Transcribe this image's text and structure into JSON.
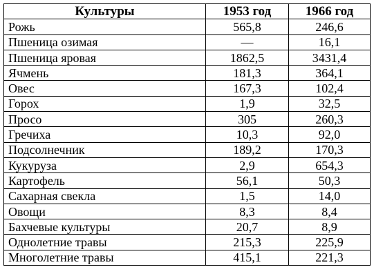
{
  "table": {
    "headers": {
      "crop": "Культуры",
      "y1953": "1953 год",
      "y1966": "1966 год"
    },
    "rows": [
      {
        "crop": "Рожь",
        "y1953": "565,8",
        "y1966": "246,6"
      },
      {
        "crop": "Пшеница озимая",
        "y1953": "—",
        "y1966": "16,1"
      },
      {
        "crop": "Пшеница яровая",
        "y1953": "1862,5",
        "y1966": "3431,4"
      },
      {
        "crop": "Ячмень",
        "y1953": "181,3",
        "y1966": "364,1"
      },
      {
        "crop": "Овес",
        "y1953": "167,3",
        "y1966": "102,4"
      },
      {
        "crop": "Горох",
        "y1953": "1,9",
        "y1966": "32,5"
      },
      {
        "crop": "Просо",
        "y1953": "305",
        "y1966": "260,3"
      },
      {
        "crop": "Гречиха",
        "y1953": "10,3",
        "y1966": "92,0"
      },
      {
        "crop": "Подсолнечник",
        "y1953": "189,2",
        "y1966": "170,3"
      },
      {
        "crop": "Кукуруза",
        "y1953": "2,9",
        "y1966": "654,3"
      },
      {
        "crop": "Картофель",
        "y1953": "56,1",
        "y1966": "50,3"
      },
      {
        "crop": "Сахарная свекла",
        "y1953": "1,5",
        "y1966": "14,0"
      },
      {
        "crop": "Овощи",
        "y1953": "8,3",
        "y1966": "8,4"
      },
      {
        "crop": "Бахчевые культуры",
        "y1953": "20,7",
        "y1966": "8,9"
      },
      {
        "crop": "Однолетние травы",
        "y1953": "215,3",
        "y1966": "225,9"
      },
      {
        "crop": "Многолетние травы",
        "y1953": "415,1",
        "y1966": "221,3"
      }
    ]
  }
}
